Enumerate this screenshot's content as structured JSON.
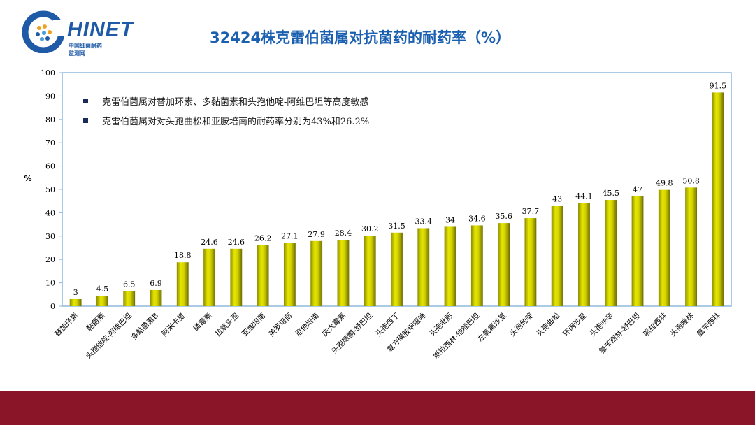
{
  "logo": {
    "text": "HINET",
    "subtitle_line1": "中国细菌耐药",
    "subtitle_line2": "监测网"
  },
  "title": "32424株克雷伯菌属对抗菌药的耐药率（%）",
  "notes": [
    "克雷伯菌属对替加环素、多黏菌素和头孢他啶-阿维巴坦等高度敏感",
    "克雷伯菌属对对头孢曲松和亚胺培南的耐药率分别为43%和26.2%"
  ],
  "colors": {
    "bar": "#d4d400",
    "bar_dark": "#8c8c00",
    "title": "#1b5fb0",
    "footer": "#8a1528",
    "axis_frame": "#8fb8de"
  },
  "chart_data": {
    "type": "bar",
    "ylabel": "%",
    "ylim": [
      0,
      100
    ],
    "yticks": [
      0,
      10,
      20,
      30,
      40,
      50,
      60,
      70,
      80,
      90,
      100
    ],
    "grid": false,
    "categories": [
      "替加环素",
      "黏菌素",
      "头孢他啶-阿维巴坦",
      "多黏菌素B",
      "阿米卡星",
      "磷霉素",
      "拉氧头孢",
      "亚胺培南",
      "美罗培南",
      "厄他培南",
      "庆大霉素",
      "头孢哌酮-舒巴坦",
      "头孢西丁",
      "复方磺胺甲噁唑",
      "头孢吡肟",
      "哌拉西林-他唑巴坦",
      "左氧氟沙星",
      "头孢他啶",
      "头孢曲松",
      "环丙沙星",
      "头孢呋辛",
      "氨苄西林-舒巴坦",
      "哌拉西林",
      "头孢唑林",
      "氨苄西林"
    ],
    "values": [
      3,
      4.5,
      6.5,
      6.9,
      18.8,
      24.6,
      24.6,
      26.2,
      27.1,
      27.9,
      28.4,
      30.2,
      31.5,
      33.4,
      34,
      34.6,
      35.6,
      37.7,
      43,
      44.1,
      45.5,
      47,
      49.8,
      50.8,
      91.5
    ],
    "labels": [
      "3",
      "4.5",
      "6.5",
      "6.9",
      "18.8",
      "24.6",
      "24.6",
      "26.2",
      "27.1",
      "27.9",
      "28.4",
      "30.2",
      "31.5",
      "33.4",
      "34",
      "34.6",
      "35.6",
      "37.7",
      "43",
      "44.1",
      "45.5",
      "47",
      "49.8",
      "50.8",
      "91.5"
    ]
  }
}
